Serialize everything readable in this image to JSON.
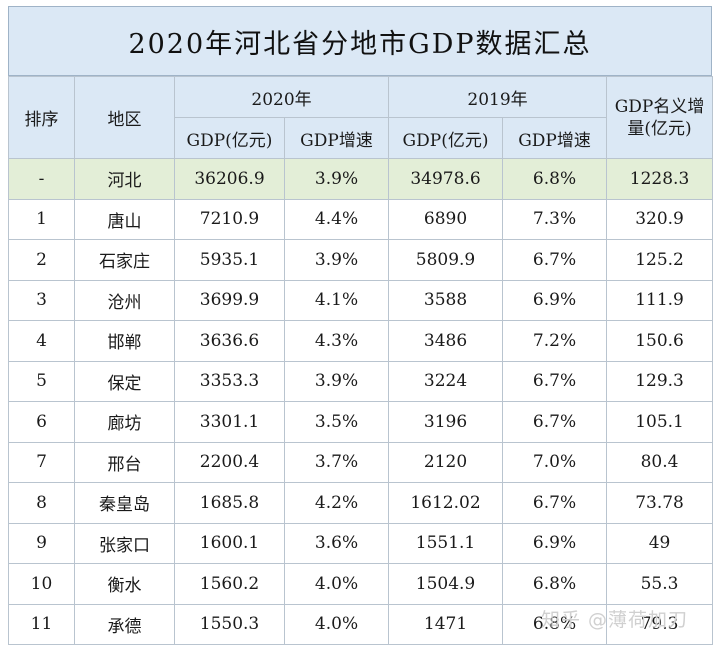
{
  "title": "2020年河北省分地市GDP数据汇总",
  "headers": {
    "rank": "排序",
    "region": "地区",
    "year2020": "2020年",
    "year2019": "2019年",
    "gdp_increase": "GDP名义增量(亿元)",
    "gdp_value": "GDP(亿元)",
    "gdp_growth": "GDP增速"
  },
  "rows": [
    {
      "rank": "-",
      "region": "河北",
      "gdp2020": "36206.9",
      "growth2020": "3.9%",
      "gdp2019": "34978.6",
      "growth2019": "6.8%",
      "increase": "1228.3"
    },
    {
      "rank": "1",
      "region": "唐山",
      "gdp2020": "7210.9",
      "growth2020": "4.4%",
      "gdp2019": "6890",
      "growth2019": "7.3%",
      "increase": "320.9"
    },
    {
      "rank": "2",
      "region": "石家庄",
      "gdp2020": "5935.1",
      "growth2020": "3.9%",
      "gdp2019": "5809.9",
      "growth2019": "6.7%",
      "increase": "125.2"
    },
    {
      "rank": "3",
      "region": "沧州",
      "gdp2020": "3699.9",
      "growth2020": "4.1%",
      "gdp2019": "3588",
      "growth2019": "6.9%",
      "increase": "111.9"
    },
    {
      "rank": "4",
      "region": "邯郸",
      "gdp2020": "3636.6",
      "growth2020": "4.3%",
      "gdp2019": "3486",
      "growth2019": "7.2%",
      "increase": "150.6"
    },
    {
      "rank": "5",
      "region": "保定",
      "gdp2020": "3353.3",
      "growth2020": "3.9%",
      "gdp2019": "3224",
      "growth2019": "6.7%",
      "increase": "129.3"
    },
    {
      "rank": "6",
      "region": "廊坊",
      "gdp2020": "3301.1",
      "growth2020": "3.5%",
      "gdp2019": "3196",
      "growth2019": "6.7%",
      "increase": "105.1"
    },
    {
      "rank": "7",
      "region": "邢台",
      "gdp2020": "2200.4",
      "growth2020": "3.7%",
      "gdp2019": "2120",
      "growth2019": "7.0%",
      "increase": "80.4"
    },
    {
      "rank": "8",
      "region": "秦皇岛",
      "gdp2020": "1685.8",
      "growth2020": "4.2%",
      "gdp2019": "1612.02",
      "growth2019": "6.7%",
      "increase": "73.78"
    },
    {
      "rank": "9",
      "region": "张家口",
      "gdp2020": "1600.1",
      "growth2020": "3.6%",
      "gdp2019": "1551.1",
      "growth2019": "6.9%",
      "increase": "49"
    },
    {
      "rank": "10",
      "region": "衡水",
      "gdp2020": "1560.2",
      "growth2020": "4.0%",
      "gdp2019": "1504.9",
      "growth2019": "6.8%",
      "increase": "55.3"
    },
    {
      "rank": "11",
      "region": "承德",
      "gdp2020": "1550.3",
      "growth2020": "4.0%",
      "gdp2019": "1471",
      "growth2019": "6.8%",
      "increase": "79.3"
    }
  ],
  "watermark": "知乎 @薄荷加刀"
}
